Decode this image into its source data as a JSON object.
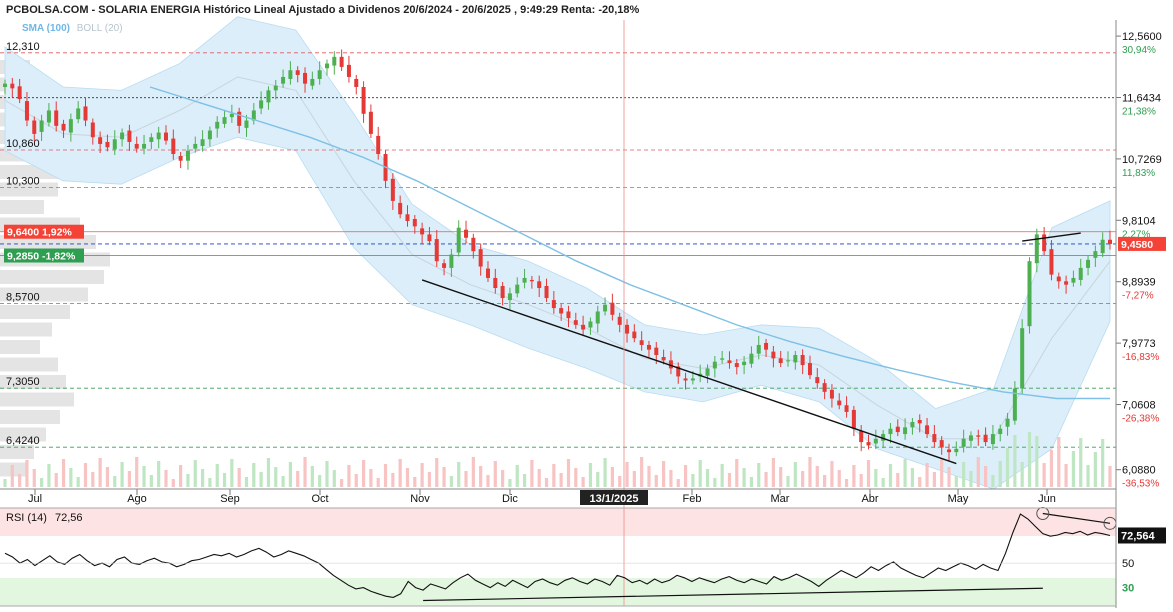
{
  "header": {
    "title": "PCBOLSA.COM - SOLARIA ENERGIA Histórico Lineal Ajustado a Dividenos 20/6/2024 - 20/6/2025 , 9:49:29 Renta: -20,18%"
  },
  "legend": {
    "sma": "SMA (100)",
    "boll": "BOLL (20)"
  },
  "rsi_panel": {
    "label": "RSI (14)",
    "value": "72,56",
    "badge": "72,564",
    "ticks": [
      "50",
      "30"
    ]
  },
  "colors": {
    "up": "#4caf50",
    "down": "#e53935",
    "band": "#dbeefa",
    "sma": "#7ec0e6",
    "rsi_high_zone": "#fde3e3",
    "rsi_low_zone": "#e3f7e0",
    "badge_red": "#f44336",
    "badge_green": "#2e9e50"
  },
  "chart_data": [
    {
      "type": "candlestick",
      "title": "SOLARIA ENERGIA",
      "ylim": [
        5.8,
        12.8
      ],
      "months": [
        "Jul",
        "Ago",
        "Sep",
        "Oct",
        "Nov",
        "Dic",
        "13/1/2025",
        "Feb",
        "Mar",
        "Abr",
        "May",
        "Jun"
      ],
      "right_axis": [
        {
          "price": "12,5600",
          "pct": "30,94%",
          "dir": "up"
        },
        {
          "price": "11,6434",
          "pct": "21,38%",
          "dir": "up"
        },
        {
          "price": "10,7269",
          "pct": "11,83%",
          "dir": "up"
        },
        {
          "price": "9,8104",
          "pct": "2,27%",
          "dir": "up"
        },
        {
          "price": "8,8939",
          "pct": "-7,27%",
          "dir": "down"
        },
        {
          "price": "7,9773",
          "pct": "-16,83%",
          "dir": "down"
        },
        {
          "price": "7,0608",
          "pct": "-26,38%",
          "dir": "down"
        },
        {
          "price": "6,0880",
          "pct": "-36,53%",
          "dir": "down"
        }
      ],
      "levels": [
        {
          "label": "12,310",
          "value": 12.31
        },
        {
          "label": "10,860",
          "value": 10.86
        },
        {
          "label": "10,300",
          "value": 10.3
        },
        {
          "label": "8,5700",
          "value": 8.57
        },
        {
          "label": "7,3050",
          "value": 7.305
        },
        {
          "label": "6,4240",
          "value": 6.424
        }
      ],
      "reference_line": 11.64,
      "high_badge": {
        "label": "9,6400  1,92%",
        "value": 9.64
      },
      "low_badge": {
        "label": "9,2850  -1,82%",
        "value": 9.285
      },
      "last_badge": {
        "label": "9,4580",
        "value": 9.458
      },
      "close": [
        11.85,
        11.78,
        11.62,
        11.3,
        11.1,
        11.3,
        11.45,
        11.22,
        11.15,
        11.32,
        11.48,
        11.3,
        11.05,
        10.95,
        10.9,
        11.02,
        11.12,
        10.98,
        10.88,
        10.95,
        11.05,
        11.12,
        11.0,
        10.8,
        10.7,
        10.85,
        10.95,
        11.02,
        11.15,
        11.28,
        11.35,
        11.4,
        11.22,
        11.3,
        11.45,
        11.6,
        11.75,
        11.82,
        11.95,
        12.05,
        11.98,
        11.85,
        11.92,
        12.05,
        12.15,
        12.25,
        12.1,
        11.95,
        11.8,
        11.4,
        11.1,
        10.8,
        10.4,
        10.1,
        9.9,
        9.8,
        9.72,
        9.6,
        9.5,
        9.2,
        9.1,
        9.3,
        9.7,
        9.55,
        9.35,
        9.12,
        8.95,
        8.8,
        8.65,
        8.72,
        8.85,
        8.95,
        8.9,
        8.8,
        8.65,
        8.5,
        8.42,
        8.35,
        8.25,
        8.18,
        8.3,
        8.45,
        8.55,
        8.4,
        8.25,
        8.12,
        8.05,
        7.95,
        7.88,
        7.8,
        7.72,
        7.6,
        7.48,
        7.42,
        7.45,
        7.52,
        7.6,
        7.7,
        7.75,
        7.68,
        7.62,
        7.7,
        7.82,
        7.95,
        7.88,
        7.75,
        7.68,
        7.72,
        7.8,
        7.65,
        7.5,
        7.38,
        7.25,
        7.15,
        7.05,
        6.95,
        6.7,
        6.5,
        6.45,
        6.55,
        6.62,
        6.7,
        6.65,
        6.72,
        6.8,
        6.78,
        6.62,
        6.5,
        6.42,
        6.35,
        6.4,
        6.55,
        6.6,
        6.58,
        6.5,
        6.62,
        6.7,
        6.85,
        7.3,
        8.2,
        9.2,
        9.6,
        9.35,
        9.0,
        8.9,
        8.85,
        8.95,
        9.1,
        9.22,
        9.35,
        9.52,
        9.458
      ],
      "sma100": [
        11.8,
        11.55,
        11.3,
        11.05,
        10.75,
        10.4,
        10.0,
        9.6,
        9.2,
        8.85,
        8.55,
        8.25,
        8.0,
        7.78,
        7.58,
        7.4,
        7.25,
        7.15,
        7.15
      ],
      "boll_mid": [
        11.6,
        11.1,
        11.05,
        11.45,
        11.95,
        11.75,
        10.4,
        9.3,
        8.85,
        8.55,
        8.2,
        7.75,
        7.6,
        7.8,
        7.65,
        7.05,
        6.55,
        6.55,
        8.05,
        9.2
      ],
      "boll_upper": [
        12.4,
        11.8,
        11.75,
        12.15,
        12.85,
        12.65,
        11.4,
        10.05,
        9.45,
        9.2,
        8.8,
        8.25,
        8.1,
        8.25,
        8.2,
        7.7,
        7.0,
        7.3,
        9.7,
        10.1
      ],
      "boll_lower": [
        10.85,
        10.4,
        10.35,
        10.75,
        11.05,
        10.85,
        9.4,
        8.55,
        8.25,
        7.9,
        7.6,
        7.25,
        7.1,
        7.35,
        7.1,
        6.4,
        6.1,
        5.8,
        6.4,
        8.3
      ],
      "trendlines": [
        {
          "from": [
            57,
            8.92
          ],
          "to": [
            130,
            6.18
          ]
        },
        {
          "from": [
            139,
            9.5
          ],
          "to": [
            147,
            9.62
          ]
        }
      ]
    },
    {
      "type": "line",
      "title": "RSI (14)",
      "ylim": [
        15,
        95
      ],
      "zones": [
        [
          70,
          95
        ],
        [
          15,
          30
        ]
      ],
      "values": [
        58,
        55,
        50,
        53,
        48,
        52,
        56,
        51,
        49,
        54,
        57,
        52,
        48,
        50,
        47,
        53,
        55,
        50,
        49,
        52,
        54,
        51,
        50,
        47,
        49,
        52,
        53,
        55,
        57,
        56,
        58,
        55,
        57,
        60,
        62,
        59,
        55,
        57,
        60,
        58,
        56,
        53,
        50,
        45,
        40,
        36,
        32,
        29,
        30,
        27,
        25,
        23,
        22,
        25,
        35,
        30,
        28,
        33,
        31,
        29,
        34,
        38,
        41,
        36,
        33,
        30,
        34,
        31,
        36,
        33,
        30,
        35,
        37,
        34,
        32,
        36,
        38,
        35,
        33,
        37,
        35,
        32,
        40,
        38,
        34,
        36,
        33,
        37,
        34,
        36,
        40,
        38,
        35,
        38,
        36,
        34,
        37,
        39,
        36,
        34,
        37,
        35,
        33,
        39,
        36,
        38,
        41,
        38,
        35,
        31,
        36,
        40,
        44,
        41,
        38,
        42,
        47,
        44,
        48,
        51,
        46,
        43,
        40,
        38,
        42,
        46,
        44,
        47,
        50,
        48,
        45,
        49,
        46,
        44,
        58,
        75,
        90,
        86,
        80,
        74,
        72,
        73,
        75,
        74,
        76,
        73,
        75,
        74,
        72.56
      ],
      "trendlines": [
        {
          "from": [
            56,
            19.5
          ],
          "to": [
            139,
            29.5
          ]
        },
        {
          "from": [
            139,
            90.5
          ],
          "to": [
            148,
            82.5
          ]
        }
      ]
    }
  ]
}
